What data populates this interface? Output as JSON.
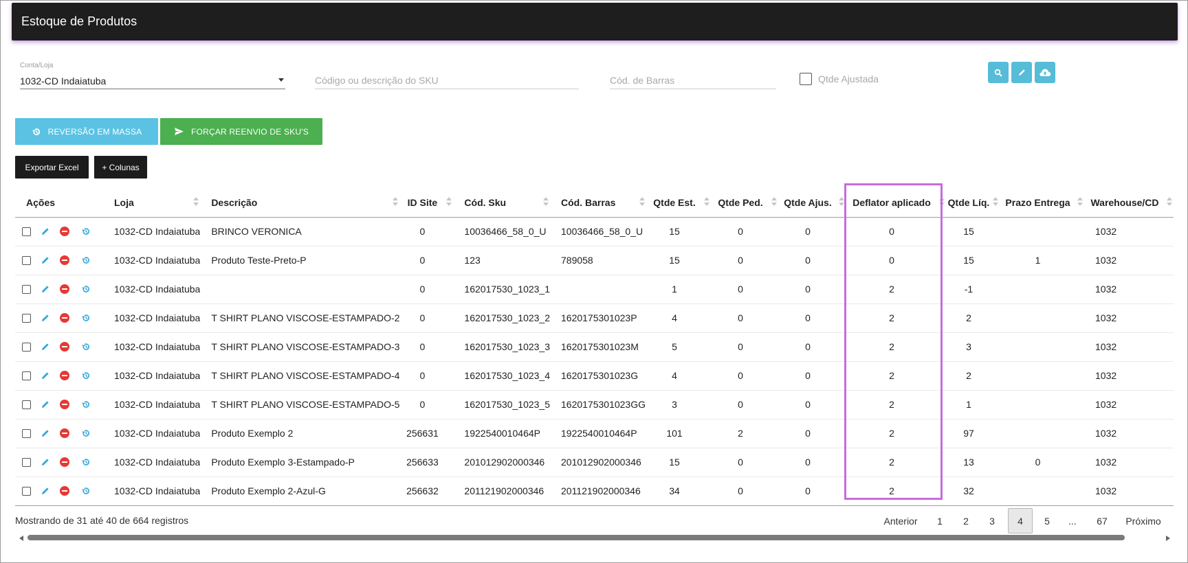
{
  "header": {
    "title": "Estoque de Produtos"
  },
  "filters": {
    "account_label": "Conta/Loja",
    "account_value": "1032-CD Indaiatuba",
    "sku_placeholder": "Código ou descrição do SKU",
    "barcode_placeholder": "Cód. de Barras",
    "adjusted_label": "Qtde Ajustada"
  },
  "toolbar_icons": [
    "search-icon",
    "pencil-icon",
    "cloud-upload-icon"
  ],
  "actions": {
    "reversal_label": "REVERSÃO EM MASSA",
    "force_label": "FORÇAR REENVIO DE SKU'S",
    "export_label": "Exportar Excel",
    "columns_label": "+ Colunas"
  },
  "colors": {
    "accent_blue": "#5bc2e3",
    "accent_green": "#4caf50",
    "highlight": "#c76bde",
    "delete_red": "#e53935"
  },
  "table": {
    "columns": [
      "Ações",
      "Loja",
      "Descrição",
      "ID Site",
      "Cód. Sku",
      "Cód. Barras",
      "Qtde Est.",
      "Qtde Ped.",
      "Qtde Ajus.",
      "Deflator aplicado",
      "Qtde Líq.",
      "Prazo Entrega",
      "Warehouse/CD"
    ],
    "rows": [
      [
        "1032-CD Indaiatuba",
        "BRINCO VERONICA",
        "0",
        "10036466_58_0_U",
        "10036466_58_0_U",
        "15",
        "0",
        "0",
        "0",
        "15",
        "",
        "1032"
      ],
      [
        "1032-CD Indaiatuba",
        "Produto Teste-Preto-P",
        "0",
        "123",
        "789058",
        "15",
        "0",
        "0",
        "0",
        "15",
        "1",
        "1032"
      ],
      [
        "1032-CD Indaiatuba",
        "",
        "0",
        "162017530_1023_1",
        "",
        "1",
        "0",
        "0",
        "2",
        "-1",
        "",
        "1032"
      ],
      [
        "1032-CD Indaiatuba",
        "T SHIRT PLANO VISCOSE-ESTAMPADO-2",
        "0",
        "162017530_1023_2",
        "1620175301023P",
        "4",
        "0",
        "0",
        "2",
        "2",
        "",
        "1032"
      ],
      [
        "1032-CD Indaiatuba",
        "T SHIRT PLANO VISCOSE-ESTAMPADO-3",
        "0",
        "162017530_1023_3",
        "1620175301023M",
        "5",
        "0",
        "0",
        "2",
        "3",
        "",
        "1032"
      ],
      [
        "1032-CD Indaiatuba",
        "T SHIRT PLANO VISCOSE-ESTAMPADO-4",
        "0",
        "162017530_1023_4",
        "1620175301023G",
        "4",
        "0",
        "0",
        "2",
        "2",
        "",
        "1032"
      ],
      [
        "1032-CD Indaiatuba",
        "T SHIRT PLANO VISCOSE-ESTAMPADO-5",
        "0",
        "162017530_1023_5",
        "1620175301023GG",
        "3",
        "0",
        "0",
        "2",
        "1",
        "",
        "1032"
      ],
      [
        "1032-CD Indaiatuba",
        "Produto Exemplo 2",
        "256631",
        "1922540010464P",
        "1922540010464P",
        "101",
        "2",
        "0",
        "2",
        "97",
        "",
        "1032"
      ],
      [
        "1032-CD Indaiatuba",
        "Produto Exemplo 3-Estampado-P",
        "256633",
        "201012902000346",
        "201012902000346",
        "15",
        "0",
        "0",
        "2",
        "13",
        "0",
        "1032"
      ],
      [
        "1032-CD Indaiatuba",
        "Produto Exemplo 2-Azul-G",
        "256632",
        "201121902000346",
        "201121902000346",
        "34",
        "0",
        "0",
        "2",
        "32",
        "",
        "1032"
      ]
    ]
  },
  "footer": {
    "summary": "Mostrando de 31 até 40 de 664 registros",
    "prev": "Anterior",
    "pages": [
      "1",
      "2",
      "3",
      "4",
      "5",
      "...",
      "67"
    ],
    "current_page": "4",
    "next": "Próximo"
  }
}
